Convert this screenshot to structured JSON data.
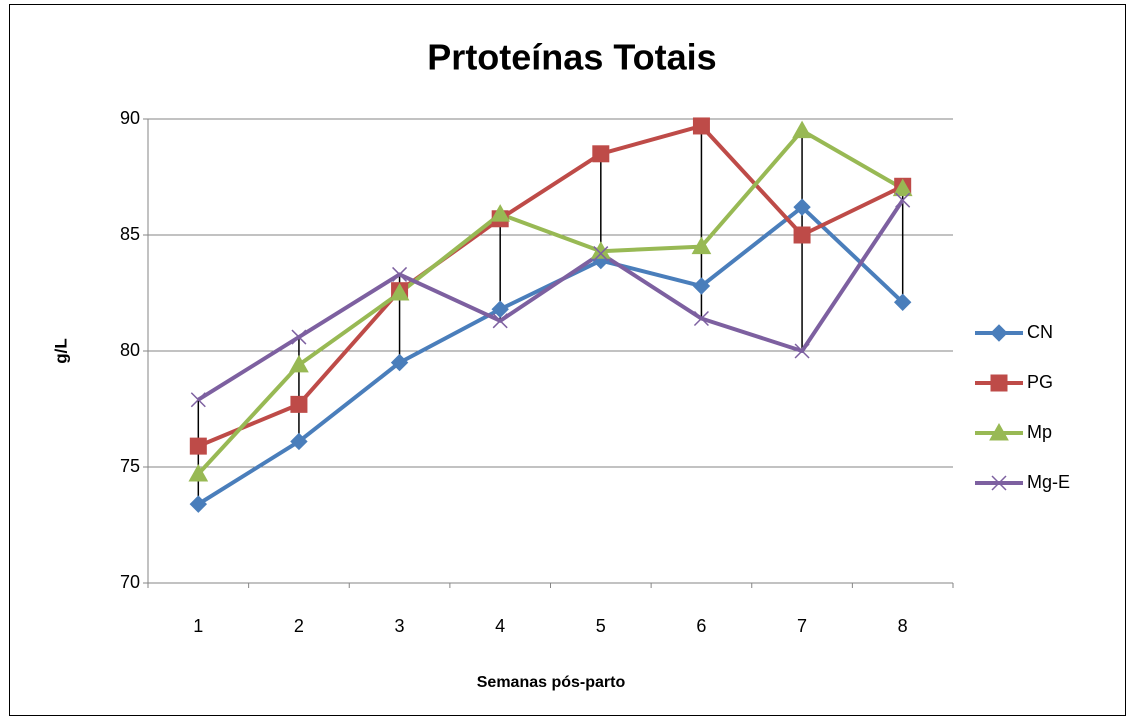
{
  "chart_data": {
    "type": "line",
    "title": "Prtoteínas Totais",
    "x_label": "Semanas pós-parto",
    "y_label": "g/L",
    "categories": [
      "1",
      "2",
      "3",
      "4",
      "5",
      "6",
      "7",
      "8"
    ],
    "series": [
      {
        "name": "CN",
        "color": "#4a7ebb",
        "marker": "diamond",
        "values": [
          73.4,
          76.1,
          79.5,
          81.8,
          83.9,
          82.8,
          86.2,
          82.1
        ]
      },
      {
        "name": "PG",
        "color": "#be4b48",
        "marker": "square",
        "values": [
          75.9,
          77.7,
          82.6,
          85.7,
          88.5,
          89.7,
          85.0,
          87.1
        ]
      },
      {
        "name": "Mp",
        "color": "#98b954",
        "marker": "triangle",
        "values": [
          74.7,
          79.4,
          82.5,
          85.9,
          84.3,
          84.5,
          89.5,
          87.0
        ]
      },
      {
        "name": "Mg-E",
        "color": "#7d60a0",
        "marker": "x",
        "values": [
          77.9,
          80.6,
          83.3,
          81.3,
          84.2,
          81.4,
          80.0,
          86.5
        ]
      }
    ],
    "ylim": [
      70,
      90
    ],
    "yticks": [
      70,
      75,
      80,
      85,
      90
    ],
    "grid": true,
    "high_low_lines": true,
    "legend": "right"
  }
}
